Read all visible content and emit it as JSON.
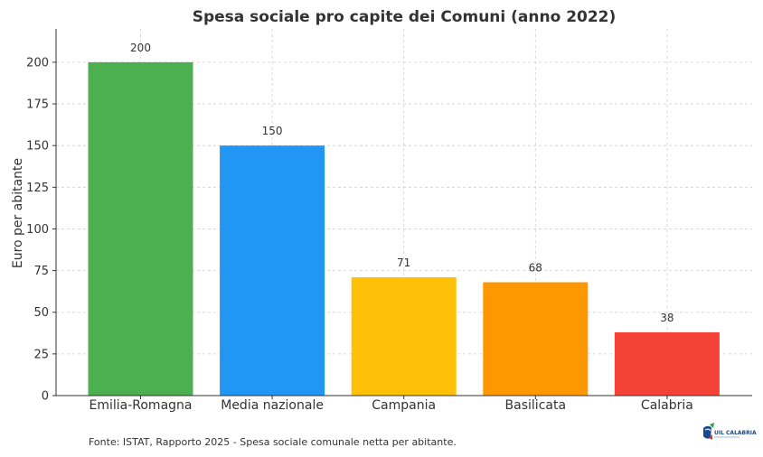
{
  "chart_data": {
    "type": "bar",
    "title": "Spesa sociale pro capite dei Comuni (anno 2022)",
    "xlabel": "",
    "ylabel": "Euro per abitante",
    "categories": [
      "Emilia-Romagna",
      "Media nazionale",
      "Campania",
      "Basilicata",
      "Calabria"
    ],
    "values": [
      200,
      150,
      71,
      68,
      38
    ],
    "value_labels": [
      "200",
      "150",
      "71",
      "68",
      "38"
    ],
    "colors": [
      "#4CAF50",
      "#2196F3",
      "#FFC107",
      "#FF9800",
      "#F44336"
    ],
    "ylim": [
      0,
      220
    ],
    "yticks": [
      0,
      25,
      50,
      75,
      100,
      125,
      150,
      175,
      200
    ],
    "ytick_labels": [
      "0",
      "25",
      "50",
      "75",
      "100",
      "125",
      "150",
      "175",
      "200"
    ],
    "grid": true,
    "legend": "none"
  },
  "source_note": "Fonte: ISTAT, Rapporto 2025 - Spesa sociale comunale netta per abitante.",
  "logo": {
    "text": "UIL CALABRIA",
    "icon": "uil-calabria-logo"
  }
}
